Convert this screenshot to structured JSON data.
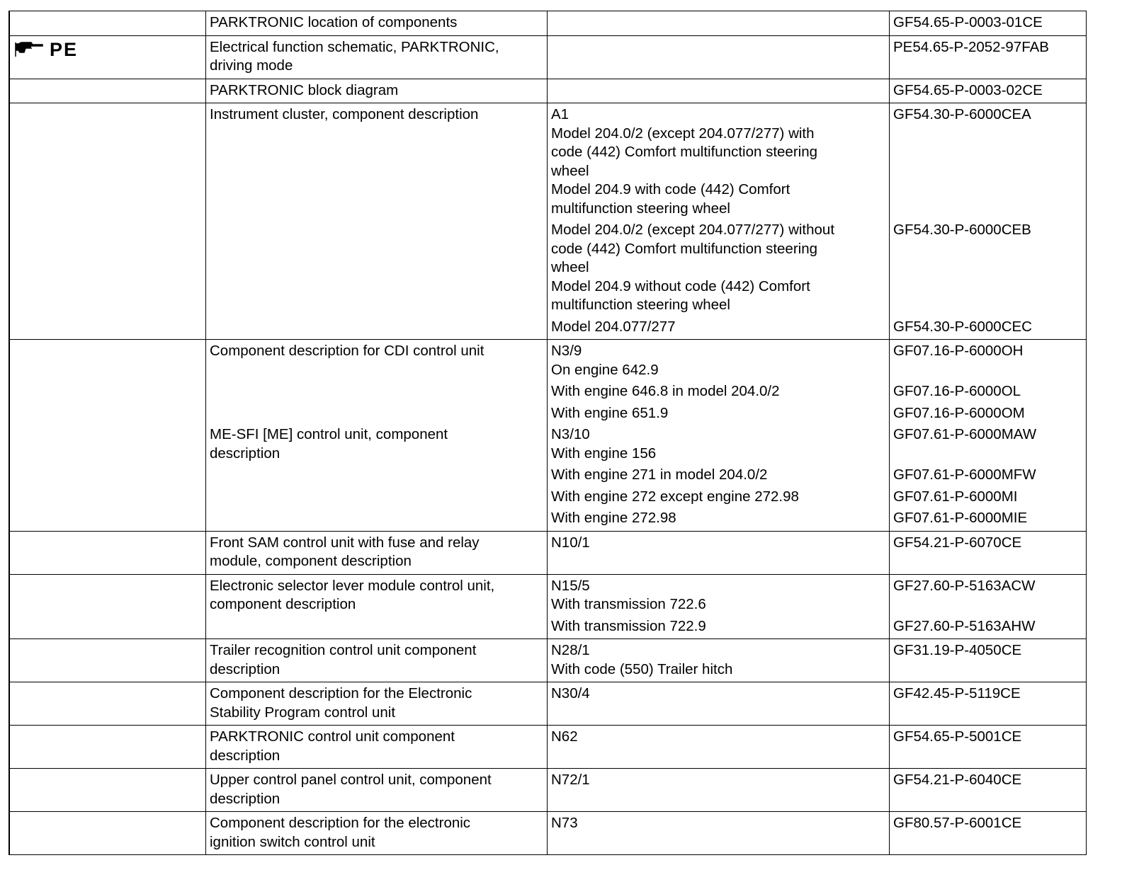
{
  "rows": [
    {
      "subs": [
        {
          "title": "PARKTRONIC location of components",
          "ref": "",
          "code": "GF54.65-P-0003-01CE"
        }
      ]
    },
    {
      "marker": {
        "icon": "pointing-hand-icon",
        "text": "PE"
      },
      "subs": [
        {
          "title": "Electrical function schematic, PARKTRONIC,\ndriving mode",
          "ref": "",
          "code": "PE54.65-P-2052-97FAB"
        }
      ]
    },
    {
      "subs": [
        {
          "title": "PARKTRONIC block diagram",
          "ref": "",
          "code": "GF54.65-P-0003-02CE"
        }
      ]
    },
    {
      "subs": [
        {
          "title": "Instrument cluster, component description",
          "ref": "A1\nModel 204.0/2 (except 204.077/277) with\ncode (442) Comfort multifunction steering\nwheel\nModel 204.9 with code (442) Comfort\nmultifunction steering wheel",
          "code": "GF54.30-P-6000CEA"
        },
        {
          "title": "",
          "ref": "Model 204.0/2 (except 204.077/277) without\ncode (442) Comfort multifunction steering\nwheel\nModel 204.9 without code (442) Comfort\nmultifunction steering wheel",
          "code": "GF54.30-P-6000CEB"
        },
        {
          "title": "",
          "ref": "Model 204.077/277",
          "code": "GF54.30-P-6000CEC"
        }
      ]
    },
    {
      "subs": [
        {
          "title": "Component description for CDI control unit",
          "ref": "N3/9\nOn engine 642.9",
          "code": "GF07.16-P-6000OH"
        },
        {
          "title": "",
          "ref": "With engine 646.8 in model 204.0/2",
          "code": "GF07.16-P-6000OL"
        },
        {
          "title": "",
          "ref": "With engine 651.9",
          "code": "GF07.16-P-6000OM"
        },
        {
          "title": "ME-SFI [ME] control unit, component\ndescription",
          "ref": "N3/10\nWith engine 156",
          "code": "GF07.61-P-6000MAW"
        },
        {
          "title": "",
          "ref": "With engine 271 in model 204.0/2",
          "code": "GF07.61-P-6000MFW"
        },
        {
          "title": "",
          "ref": "With engine 272 except engine 272.98",
          "code": "GF07.61-P-6000MI"
        },
        {
          "title": "",
          "ref": "With engine 272.98",
          "code": "GF07.61-P-6000MIE"
        }
      ]
    },
    {
      "subs": [
        {
          "title": "Front SAM control unit with fuse and relay\nmodule, component description",
          "ref": "N10/1",
          "code": "GF54.21-P-6070CE"
        }
      ]
    },
    {
      "subs": [
        {
          "title": "Electronic selector lever module control unit,\ncomponent description",
          "ref": "N15/5\nWith transmission 722.6",
          "code": "GF27.60-P-5163ACW"
        },
        {
          "title": "",
          "ref": "With transmission 722.9",
          "code": "GF27.60-P-5163AHW"
        }
      ]
    },
    {
      "subs": [
        {
          "title": "Trailer recognition control unit component\ndescription",
          "ref": "N28/1\nWith code (550) Trailer hitch",
          "code": "GF31.19-P-4050CE"
        }
      ]
    },
    {
      "subs": [
        {
          "title": "Component description for the Electronic\nStability Program control unit",
          "ref": "N30/4",
          "code": "GF42.45-P-5119CE"
        }
      ]
    },
    {
      "subs": [
        {
          "title": "PARKTRONIC control unit component\ndescription",
          "ref": "N62",
          "code": "GF54.65-P-5001CE"
        }
      ]
    },
    {
      "subs": [
        {
          "title": "Upper control panel control unit, component\ndescription",
          "ref": "N72/1",
          "code": "GF54.21-P-6040CE"
        }
      ]
    },
    {
      "subs": [
        {
          "title": "Component description for the electronic\nignition switch control unit",
          "ref": "N73",
          "code": "GF80.57-P-6001CE"
        }
      ]
    }
  ]
}
